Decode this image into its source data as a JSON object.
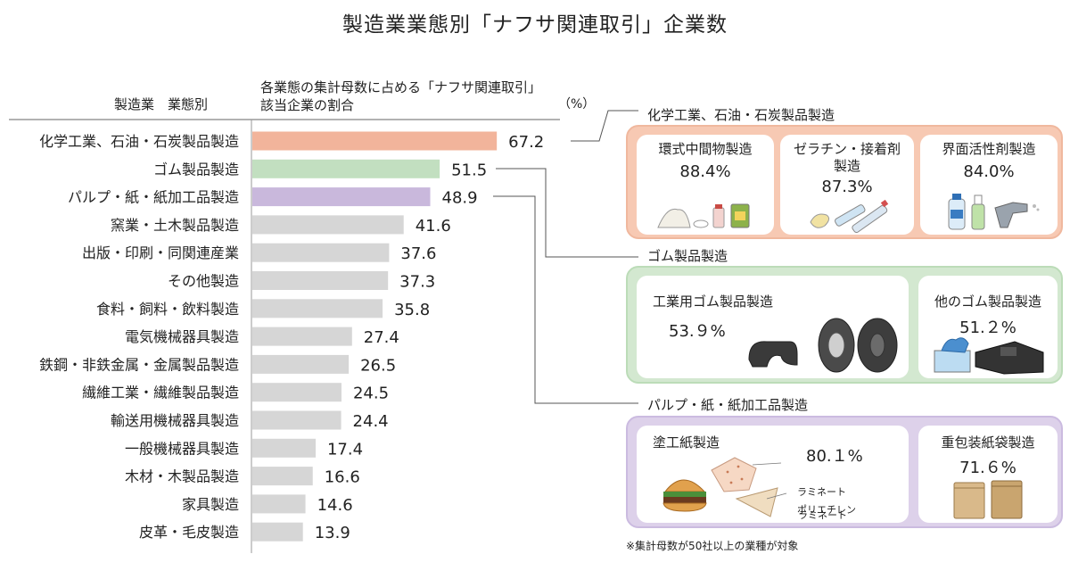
{
  "title": "製造業業態別「ナフサ関連取引」企業数",
  "header": {
    "left_label": "製造業　業態別",
    "mid_label_line1": "各業態の集計母数に占める「ナフサ関連取引」",
    "mid_label_line2": "該当企業の割合",
    "unit": "（%）"
  },
  "chart_data": {
    "type": "bar",
    "orientation": "horizontal",
    "categories": [
      "化学工業、石油・石炭製品製造",
      "ゴム製品製造",
      "パルプ・紙・紙加工品製造",
      "窯業・土木製品製造",
      "出版・印刷・同関連産業",
      "その他製造",
      "食料・飼料・飲料製造",
      "電気機械器具製造",
      "鉄鋼・非鉄金属・金属製品製造",
      "繊維工業・繊維製品製造",
      "輸送用機械器具製造",
      "一般機械器具製造",
      "木材・木製品製造",
      "家具製造",
      "皮革・毛皮製造"
    ],
    "values": [
      67.2,
      51.5,
      48.9,
      41.6,
      37.6,
      37.3,
      35.8,
      27.4,
      26.5,
      24.5,
      24.4,
      17.4,
      16.6,
      14.6,
      13.9
    ],
    "labels": [
      "67.2",
      "51.5",
      "48.9",
      "41.6",
      "37.6",
      "37.3",
      "35.8",
      "27.4",
      "26.5",
      "24.5",
      "24.4",
      "17.4",
      "16.6",
      "14.6",
      "13.9"
    ],
    "colors": [
      "#f2b49b",
      "#c2dfc0",
      "#c9b8dc",
      "#d6d6d6",
      "#d6d6d6",
      "#d6d6d6",
      "#d6d6d6",
      "#d6d6d6",
      "#d6d6d6",
      "#d6d6d6",
      "#d6d6d6",
      "#d6d6d6",
      "#d6d6d6",
      "#d6d6d6",
      "#d6d6d6"
    ],
    "xlim": [
      0,
      100
    ]
  },
  "panels": {
    "chemical": {
      "label": "化学工業、石油・石炭製品製造",
      "color": "#f7c9b3",
      "border": "#f0b89e",
      "items": [
        {
          "name": "環式中間物製造",
          "value": "88.4%"
        },
        {
          "name": "ゼラチン・接着剤製造",
          "name_line1": "ゼラチン・接着剤",
          "name_line2": "製造",
          "value": "87.3%"
        },
        {
          "name": "界面活性剤製造",
          "value": "84.0%"
        }
      ]
    },
    "rubber": {
      "label": "ゴム製品製造",
      "color": "#d3e8d0",
      "border": "#bcdcb8",
      "items": [
        {
          "name": "工業用ゴム製品製造",
          "value": "53.９%"
        },
        {
          "name": "他のゴム製品製造",
          "value": "51.２%"
        }
      ]
    },
    "pulp": {
      "label": "パルプ・紙・紙加工品製造",
      "color": "#ddd1ea",
      "border": "#cbbbe0",
      "items": [
        {
          "name": "塗工紙製造",
          "value": "80.１%",
          "note1": "ラミネート",
          "note2_line1": "ポリエチレン",
          "note2_line2": "ラミネート"
        },
        {
          "name": "重包装紙袋製造",
          "value": "71.６%"
        }
      ]
    }
  },
  "footnote": "※集計母数が50社以上の業種が対象"
}
